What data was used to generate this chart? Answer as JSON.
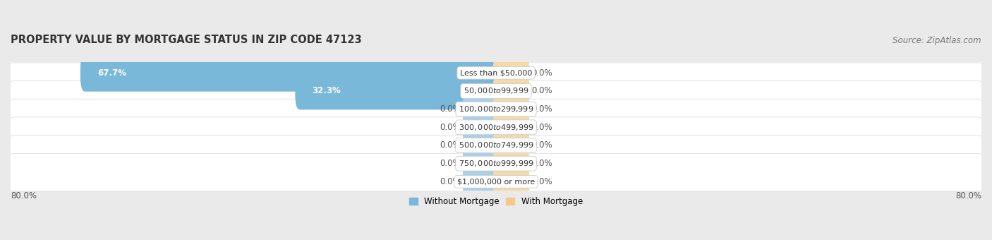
{
  "title": "PROPERTY VALUE BY MORTGAGE STATUS IN ZIP CODE 47123",
  "source": "Source: ZipAtlas.com",
  "categories": [
    "Less than $50,000",
    "$50,000 to $99,999",
    "$100,000 to $299,999",
    "$300,000 to $499,999",
    "$500,000 to $749,999",
    "$750,000 to $999,999",
    "$1,000,000 or more"
  ],
  "without_mortgage": [
    67.7,
    32.3,
    0.0,
    0.0,
    0.0,
    0.0,
    0.0
  ],
  "with_mortgage": [
    0.0,
    0.0,
    0.0,
    0.0,
    0.0,
    0.0,
    0.0
  ],
  "color_without": "#7ab8d9",
  "color_with": "#f5c98a",
  "color_without_stub": "#a8d0e8",
  "color_with_stub": "#f5d9a8",
  "bg_figure": "#eaeaea",
  "bg_row": "#f2f2f2",
  "bg_row_border": "#d8d8d8",
  "x_min": -80.0,
  "x_max": 80.0,
  "x_tick_left": "80.0%",
  "x_tick_right": "80.0%",
  "title_fontsize": 10.5,
  "source_fontsize": 8.5,
  "bar_label_fontsize": 8.5,
  "category_fontsize": 8,
  "axis_label_fontsize": 8.5,
  "legend_labels": [
    "Without Mortgage",
    "With Mortgage"
  ],
  "stub_size": 5.0
}
